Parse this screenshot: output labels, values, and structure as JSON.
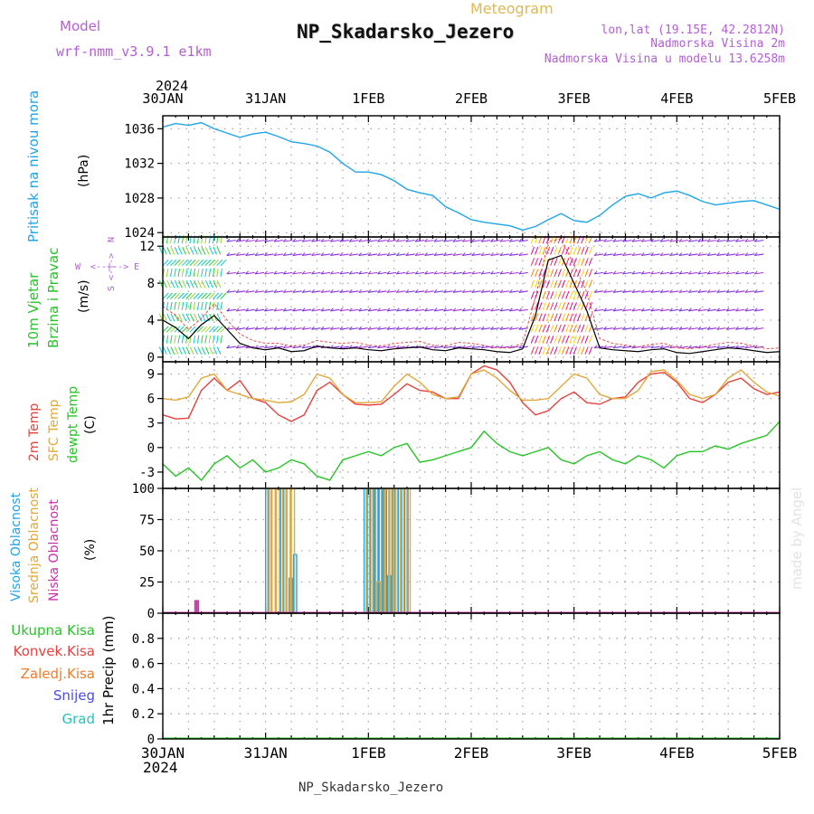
{
  "header": {
    "model_label": "Model",
    "model_value": "wrf-nmm_v3.9.1 e1km",
    "meteogram_label": "Meteogram",
    "station_title": "NP_Skadarsko_Jezero",
    "lonlat": "lon,lat (19.15E, 42.2812N)",
    "elevation": "Nadmorska Visina 2m",
    "model_elevation": "Nadmorska Visina u modelu 13.6258m",
    "credit": "made by Angel",
    "footer_title": "NP_Skadarsko_Jezero"
  },
  "time_axis": {
    "year": "2024",
    "labels": [
      "30JAN",
      "31JAN",
      "1FEB",
      "2FEB",
      "3FEB",
      "4FEB",
      "5FEB"
    ]
  },
  "colors": {
    "pressure": "#1fa5e8",
    "temp2m": "#e8403c",
    "sfc_temp": "#e0a83a",
    "dewpoint": "#26c426",
    "visoka": "#1fa5e8",
    "srednja": "#e0a83a",
    "niska": "#cc2fa8",
    "model_text": "#b35fd4",
    "meteogram_text": "#e0b850"
  },
  "chart_data": [
    {
      "type": "line",
      "panel": "pressure",
      "ylabel_side": "Pritisak na nivou mora",
      "ylabel_unit": "(hPa)",
      "ylim": [
        1023.5,
        1037.5
      ],
      "yticks": [
        "1024",
        "1028",
        "1032",
        "1036"
      ],
      "ytick_values": [
        1024,
        1028,
        1032,
        1036
      ],
      "grid": true,
      "series": [
        {
          "x": [
            0,
            3,
            6,
            9,
            12,
            15,
            18,
            21,
            24,
            27,
            30,
            33,
            36,
            39,
            42,
            45,
            48,
            51,
            54,
            57,
            60,
            63,
            66,
            69,
            72,
            75,
            78,
            81,
            84,
            87,
            90,
            93,
            96,
            99,
            102,
            105,
            108,
            111,
            114,
            117,
            120,
            123,
            126,
            129,
            132,
            135,
            138,
            141,
            144
          ],
          "values": [
            1036.2,
            1036.6,
            1036.4,
            1036.7,
            1036.0,
            1035.5,
            1035.0,
            1035.4,
            1035.6,
            1035.1,
            1034.5,
            1034.3,
            1034.0,
            1033.3,
            1032.0,
            1031.0,
            1031.0,
            1030.7,
            1030.0,
            1029.0,
            1028.6,
            1028.3,
            1027.0,
            1026.3,
            1025.5,
            1025.2,
            1025.0,
            1024.8,
            1024.3,
            1024.7,
            1025.5,
            1026.2,
            1025.4,
            1025.2,
            1026.0,
            1027.2,
            1028.2,
            1028.5,
            1028.0,
            1028.6,
            1028.8,
            1028.3,
            1027.6,
            1027.2,
            1027.4,
            1027.6,
            1027.7,
            1027.2,
            1026.7
          ]
        }
      ]
    },
    {
      "type": "line",
      "panel": "wind",
      "ylabel_side": [
        "10m Vjetar",
        "Brzina i Pravac"
      ],
      "ylabel_unit": "(m/s)",
      "compass": [
        "W",
        "<--|-->",
        "E",
        "S",
        "<-|->",
        "N"
      ],
      "ylim": [
        -0.5,
        13
      ],
      "yticks": [
        "0",
        "4",
        "8",
        "12"
      ],
      "ytick_values": [
        0,
        4,
        8,
        12
      ],
      "grid": true,
      "series": [
        {
          "x": [
            0,
            3,
            6,
            9,
            12,
            15,
            18,
            21,
            24,
            27,
            30,
            33,
            36,
            39,
            42,
            45,
            48,
            51,
            54,
            57,
            60,
            63,
            66,
            69,
            72,
            75,
            78,
            81,
            84,
            87,
            90,
            93,
            96,
            99,
            102,
            105,
            108,
            111,
            114,
            117,
            120,
            123,
            126,
            129,
            132,
            135,
            138,
            141,
            144
          ],
          "values": [
            4.0,
            3.2,
            2.0,
            3.5,
            4.5,
            3.0,
            1.5,
            1.0,
            0.8,
            1.0,
            0.6,
            0.7,
            1.2,
            1.0,
            0.9,
            1.0,
            0.8,
            0.7,
            0.9,
            1.0,
            1.1,
            0.8,
            0.7,
            1.0,
            0.9,
            0.8,
            0.6,
            0.5,
            0.9,
            4.5,
            10.5,
            11.0,
            8.0,
            5.0,
            1.0,
            0.8,
            0.7,
            0.6,
            0.8,
            0.9,
            0.5,
            0.4,
            0.6,
            0.8,
            1.0,
            0.9,
            0.7,
            0.5,
            0.6
          ]
        },
        {
          "x": [
            0,
            3,
            6,
            9,
            12,
            15,
            18,
            21,
            24,
            27,
            30,
            33,
            36,
            39,
            42,
            45,
            48,
            51,
            54,
            57,
            60,
            63,
            66,
            69,
            72,
            75,
            78,
            81,
            84,
            87,
            90,
            93,
            96,
            99,
            102,
            105,
            108,
            111,
            114,
            117,
            120,
            123,
            126,
            129,
            132,
            135,
            138,
            141,
            144
          ],
          "values": [
            5.5,
            4.5,
            3.0,
            4.2,
            5.8,
            4.0,
            2.5,
            1.8,
            1.5,
            1.5,
            1.2,
            1.3,
            1.8,
            1.6,
            1.5,
            1.6,
            1.3,
            1.2,
            1.5,
            1.6,
            1.7,
            1.3,
            1.2,
            1.6,
            1.5,
            1.3,
            1.0,
            1.0,
            1.5,
            6.5,
            12.5,
            12.8,
            10.0,
            7.0,
            2.0,
            1.5,
            1.3,
            1.1,
            1.4,
            1.5,
            1.0,
            0.9,
            1.1,
            1.4,
            1.6,
            1.5,
            1.2,
            0.9,
            1.0
          ]
        }
      ]
    },
    {
      "type": "line",
      "panel": "temperature",
      "ylabel_side": [
        "2m Temp",
        "SFC Temp",
        "dewpt Temp"
      ],
      "ylabel_unit": "(C)",
      "ylim": [
        -5,
        10.5
      ],
      "yticks": [
        "-3",
        "0",
        "3",
        "6",
        "9"
      ],
      "ytick_values": [
        -3,
        0,
        3,
        6,
        9
      ],
      "grid": true,
      "series": [
        {
          "name": "2m Temp",
          "x": [
            0,
            3,
            6,
            9,
            12,
            15,
            18,
            21,
            24,
            27,
            30,
            33,
            36,
            39,
            42,
            45,
            48,
            51,
            54,
            57,
            60,
            63,
            66,
            69,
            72,
            75,
            78,
            81,
            84,
            87,
            90,
            93,
            96,
            99,
            102,
            105,
            108,
            111,
            114,
            117,
            120,
            123,
            126,
            129,
            132,
            135,
            138,
            141,
            144
          ],
          "values": [
            4.0,
            3.5,
            3.6,
            7.0,
            8.5,
            7.0,
            8.2,
            6.0,
            5.5,
            4.0,
            3.2,
            4.0,
            7.0,
            8.0,
            6.5,
            5.3,
            5.2,
            5.3,
            6.5,
            7.8,
            7.0,
            6.8,
            6.0,
            6.0,
            9.0,
            10.0,
            9.5,
            8.0,
            5.5,
            4.0,
            4.5,
            6.0,
            6.8,
            5.5,
            5.3,
            6.0,
            6.2,
            8.0,
            9.0,
            9.2,
            8.0,
            6.0,
            5.5,
            6.5,
            8.0,
            8.5,
            7.2,
            6.5,
            6.8
          ]
        },
        {
          "name": "SFC Temp",
          "x": [
            0,
            3,
            6,
            9,
            12,
            15,
            18,
            21,
            24,
            27,
            30,
            33,
            36,
            39,
            42,
            45,
            48,
            51,
            54,
            57,
            60,
            63,
            66,
            69,
            72,
            75,
            78,
            81,
            84,
            87,
            90,
            93,
            96,
            99,
            102,
            105,
            108,
            111,
            114,
            117,
            120,
            123,
            126,
            129,
            132,
            135,
            138,
            141,
            144
          ],
          "values": [
            6.0,
            5.8,
            6.2,
            8.5,
            9.0,
            7.0,
            6.5,
            6.0,
            5.8,
            5.5,
            5.6,
            6.5,
            9.0,
            8.5,
            6.5,
            5.5,
            5.5,
            5.6,
            7.5,
            9.0,
            8.0,
            6.5,
            6.0,
            6.2,
            9.0,
            9.5,
            8.5,
            7.0,
            5.8,
            5.8,
            6.0,
            7.5,
            9.0,
            8.5,
            6.5,
            6.0,
            6.0,
            7.0,
            9.3,
            9.5,
            8.2,
            6.5,
            6.0,
            6.5,
            8.5,
            9.5,
            8.0,
            6.8,
            6.3
          ]
        },
        {
          "name": "dewpt Temp",
          "x": [
            0,
            3,
            6,
            9,
            12,
            15,
            18,
            21,
            24,
            27,
            30,
            33,
            36,
            39,
            42,
            45,
            48,
            51,
            54,
            57,
            60,
            63,
            66,
            69,
            72,
            75,
            78,
            81,
            84,
            87,
            90,
            93,
            96,
            99,
            102,
            105,
            108,
            111,
            114,
            117,
            120,
            123,
            126,
            129,
            132,
            135,
            138,
            141,
            144
          ],
          "values": [
            -2.0,
            -3.5,
            -2.5,
            -4.0,
            -2.0,
            -1.0,
            -2.5,
            -1.5,
            -3.0,
            -2.5,
            -1.5,
            -2.0,
            -3.5,
            -4.0,
            -1.5,
            -1.0,
            -0.5,
            -1.0,
            0.0,
            0.5,
            -1.8,
            -1.5,
            -1.0,
            -0.5,
            0.0,
            2.0,
            0.5,
            -0.5,
            -1.0,
            -0.5,
            0.0,
            -1.5,
            -2.0,
            -1.0,
            -0.5,
            -1.5,
            -2.0,
            -1.0,
            -1.5,
            -2.5,
            -1.0,
            -0.5,
            -0.5,
            0.2,
            -0.2,
            0.5,
            1.0,
            1.5,
            3.2
          ]
        }
      ]
    },
    {
      "type": "bar",
      "panel": "cloud",
      "ylabel_side": [
        "Visoka Oblacnost",
        "Srednja Oblacnost",
        "Niska Oblacnost"
      ],
      "ylabel_unit": "(%)",
      "ylim": [
        0,
        100
      ],
      "yticks": [
        "0",
        "25",
        "50",
        "75",
        "100"
      ],
      "ytick_values": [
        0,
        25,
        50,
        75,
        100
      ],
      "grid": true,
      "series": [
        {
          "name": "Visoka Oblacnost",
          "bars": [
            [
              24.0,
              100
            ],
            [
              27.5,
              100
            ],
            [
              29.5,
              28
            ],
            [
              30.5,
              47
            ],
            [
              47.0,
              100
            ],
            [
              48.5,
              100
            ],
            [
              49.5,
              100
            ],
            [
              50.5,
              100
            ],
            [
              51.5,
              100
            ],
            [
              52.5,
              30
            ],
            [
              53.5,
              100
            ],
            [
              55.0,
              100
            ],
            [
              56.5,
              100
            ]
          ]
        },
        {
          "name": "Srednja Oblacnost",
          "bars": [
            [
              24.5,
              100
            ],
            [
              25.5,
              100
            ],
            [
              26.5,
              100
            ],
            [
              28.0,
              100
            ],
            [
              29.0,
              100
            ],
            [
              30.0,
              100
            ],
            [
              47.5,
              100
            ],
            [
              49.0,
              100
            ],
            [
              50.0,
              25
            ],
            [
              51.0,
              100
            ],
            [
              52.0,
              100
            ],
            [
              53.0,
              100
            ],
            [
              54.0,
              100
            ],
            [
              55.5,
              100
            ],
            [
              57.0,
              100
            ]
          ]
        },
        {
          "name": "Niska Oblacnost",
          "bars": [
            [
              7.5,
              10
            ],
            [
              8.0,
              10
            ]
          ]
        }
      ]
    },
    {
      "type": "bar",
      "panel": "precip",
      "ylabel_side": "1hr Precip (mm)",
      "ylabel_unit": "",
      "legend": [
        "Ukupna Kisa",
        "Konvek.Kisa",
        "Zaledj.Kisa",
        "Snijeg",
        "Grad"
      ],
      "legend_colors": [
        "#26c426",
        "#e8403c",
        "#f07c2c",
        "#4b4be8",
        "#25c4b4"
      ],
      "ylim": [
        0,
        1.0
      ],
      "yticks": [
        "0",
        "0.2",
        "0.4",
        "0.6",
        "0.8"
      ],
      "ytick_values": [
        0,
        0.2,
        0.4,
        0.6,
        0.8
      ],
      "grid": true,
      "series": []
    }
  ]
}
